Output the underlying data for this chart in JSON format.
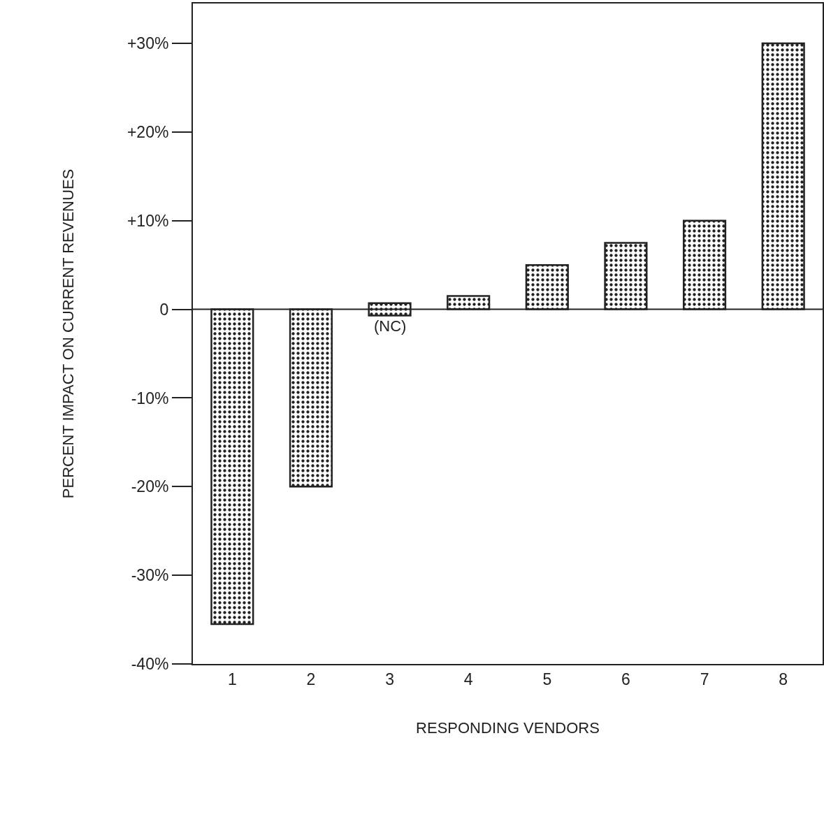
{
  "chart_data": {
    "type": "bar",
    "xlabel": "RESPONDING VENDORS",
    "ylabel": "PERCENT IMPACT ON CURRENT REVENUES",
    "categories": [
      "1",
      "2",
      "3",
      "4",
      "5",
      "6",
      "7",
      "8"
    ],
    "values": [
      -35.5,
      -20,
      1.4,
      1.5,
      5,
      7.5,
      10,
      30
    ],
    "base": [
      0,
      0,
      -0.7,
      0,
      0,
      0,
      0,
      0
    ],
    "color": "#222222",
    "ylim": [
      -40,
      34.5
    ],
    "yticks": [
      {
        "value": -40,
        "label": "-40%"
      },
      {
        "value": -30,
        "label": "-30%"
      },
      {
        "value": -20,
        "label": "-20%"
      },
      {
        "value": -10,
        "label": "-10%"
      },
      0,
      {
        "value": 10,
        "label": "+10%"
      },
      {
        "value": 20,
        "label": "+20%"
      },
      {
        "value": 30,
        "label": "+30%"
      }
    ],
    "annotations": [
      {
        "text": "(NC)",
        "x": "3",
        "y": -0.7
      }
    ],
    "ref_lines": [
      {
        "axis": "y",
        "value": 0,
        "color": "#222222"
      }
    ],
    "grid": false,
    "legend": false
  }
}
